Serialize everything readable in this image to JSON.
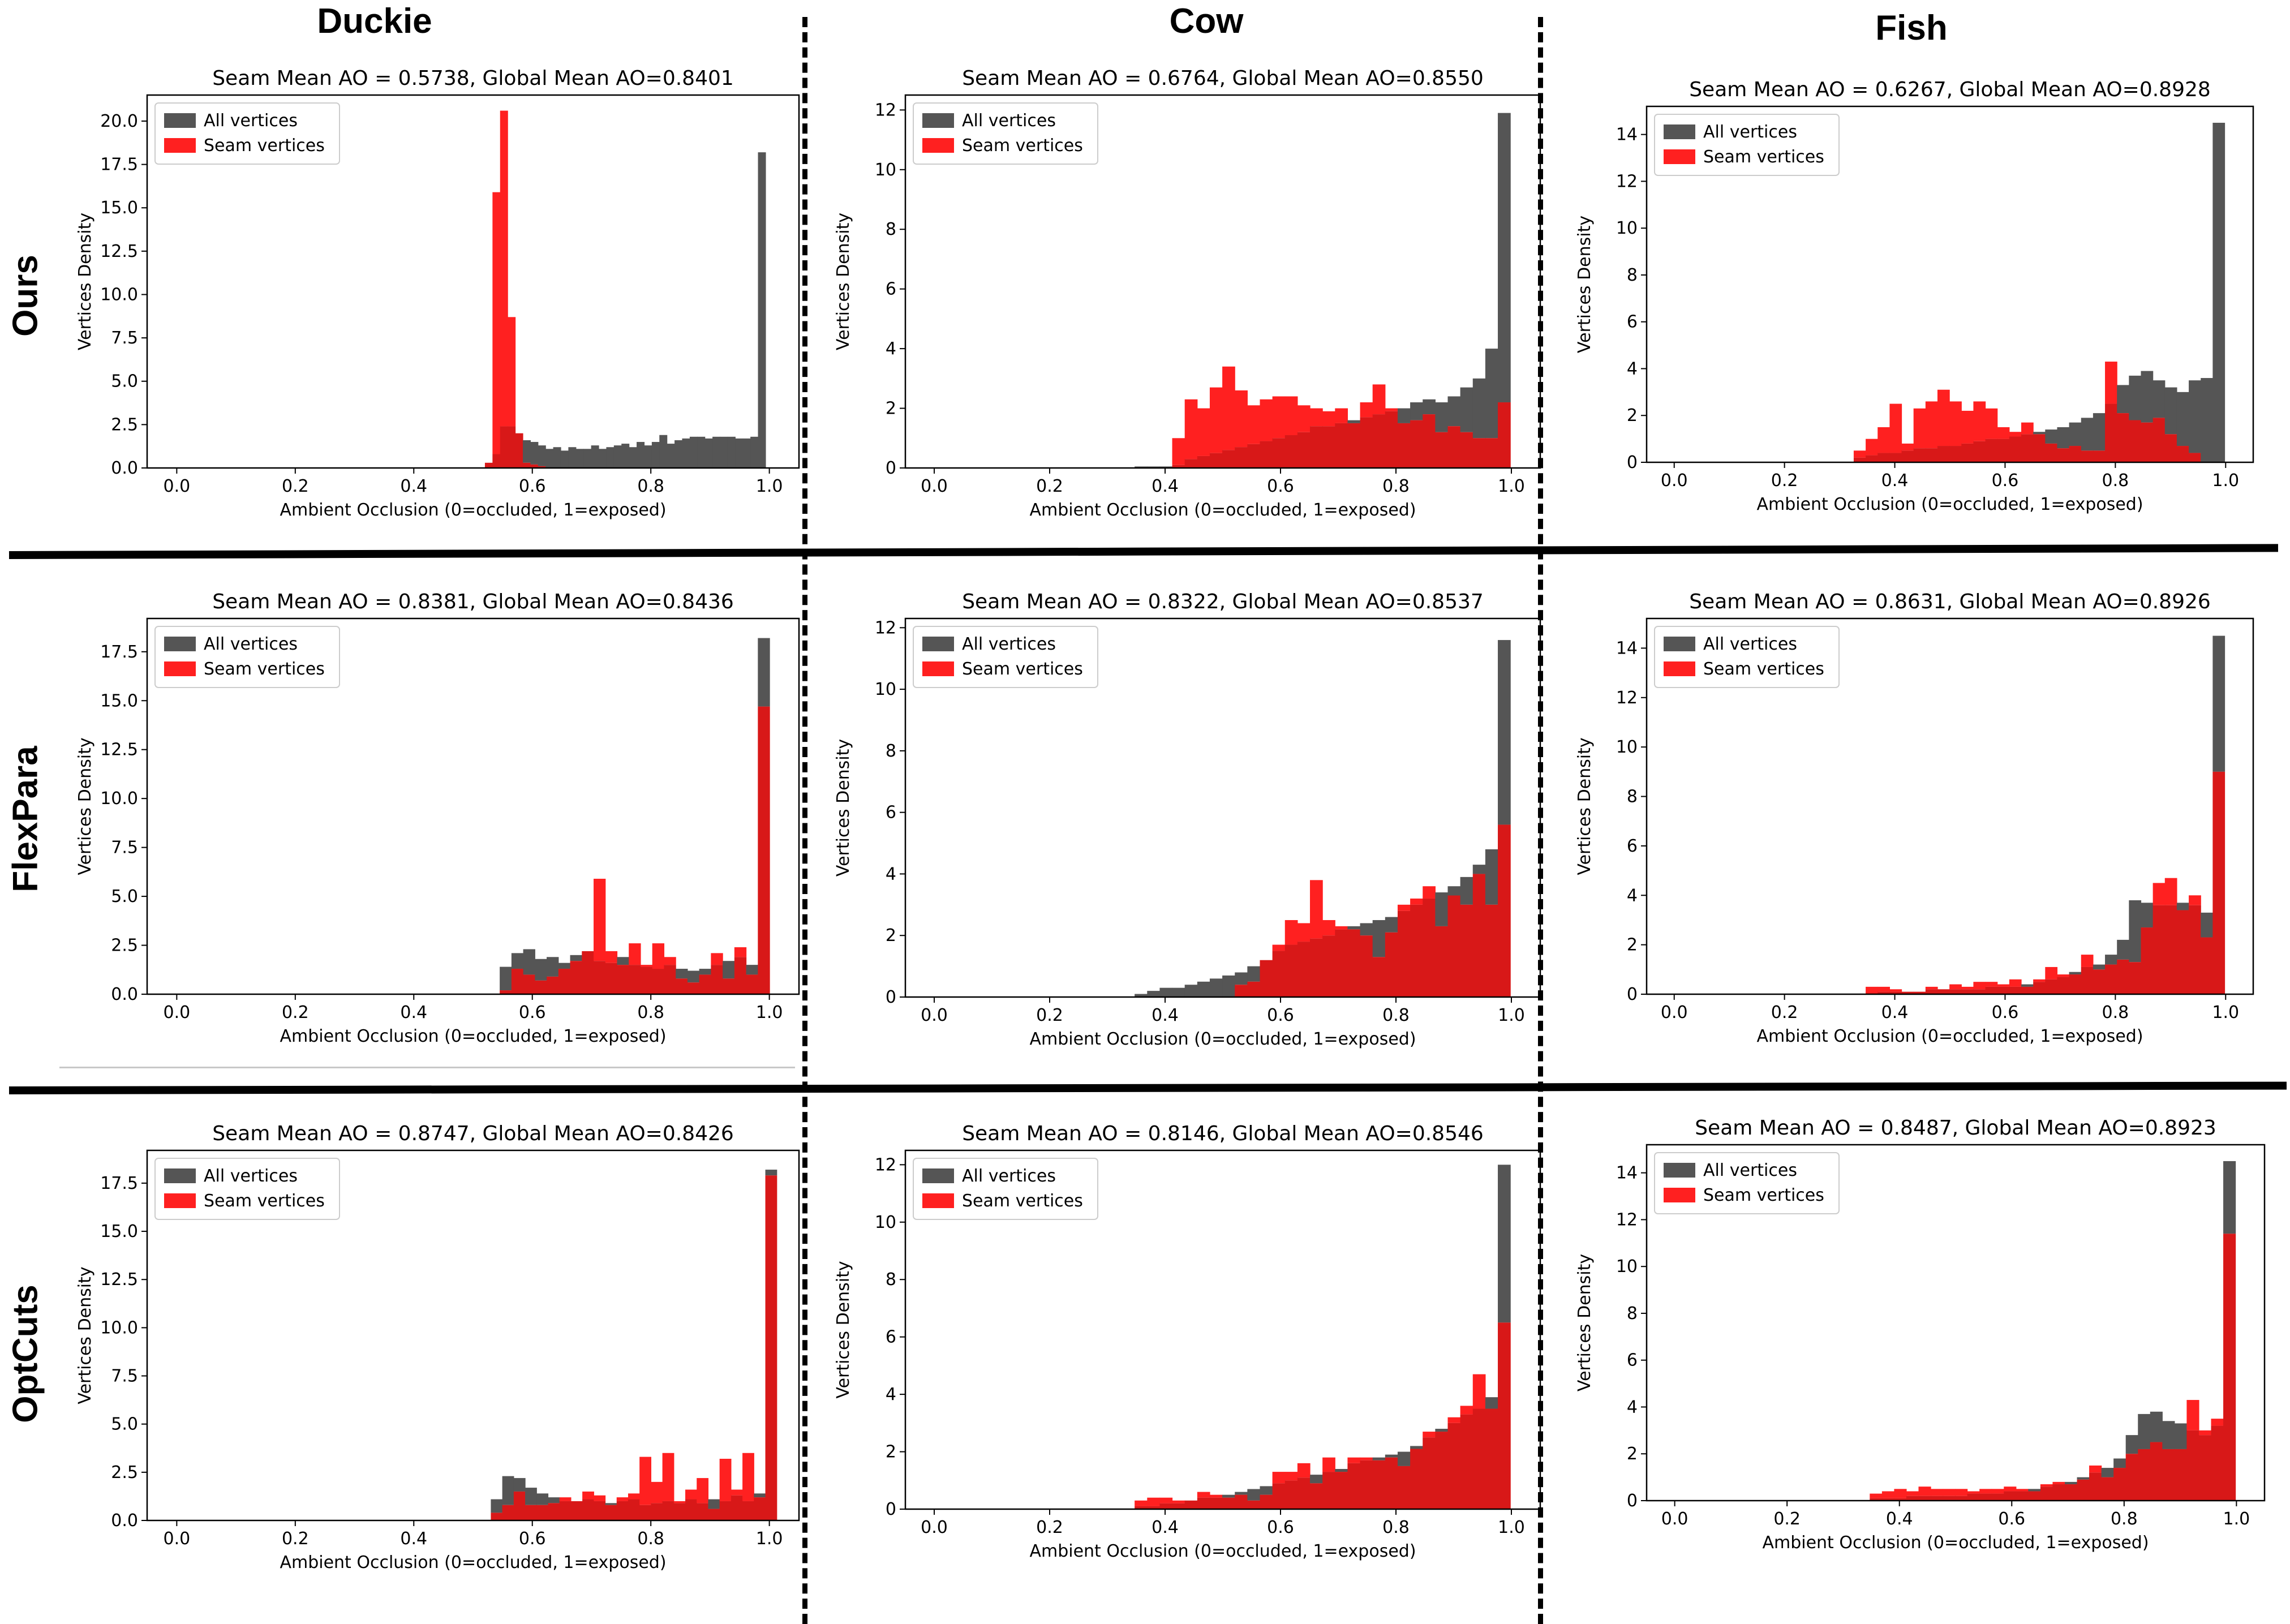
{
  "columns": [
    "Duckie",
    "Cow",
    "Fish"
  ],
  "rows": [
    "Ours",
    "FlexPara",
    "OptCuts"
  ],
  "legend": {
    "all": "All vertices",
    "seam": "Seam vertices"
  },
  "colors": {
    "all": "#555555",
    "seam": "#ff2020",
    "overlap": "#d81818"
  },
  "chart_data": [
    {
      "type": "bar",
      "row": "Ours",
      "column": "Duckie",
      "title": "Seam Mean AO = 0.5738, Global Mean AO=0.8401",
      "xlabel": "Ambient Occlusion (0=occluded, 1=exposed)",
      "ylabel": "Vertices Density",
      "xlim": [
        -0.05,
        1.05
      ],
      "ylim": [
        0,
        21.5
      ],
      "xticks": [
        "0.0",
        "0.2",
        "0.4",
        "0.6",
        "0.8",
        "1.0"
      ],
      "yticks": [
        0,
        2.5,
        5,
        7.5,
        10,
        12.5,
        15,
        17.5,
        20
      ],
      "ytick_decimals": 1,
      "bin_start": 0.52,
      "bin_width": 0.0128,
      "series": [
        {
          "name": "All vertices",
          "values": [
            0.3,
            0.8,
            2.4,
            2.4,
            2.0,
            1.6,
            1.5,
            1.3,
            1.1,
            1.2,
            1.0,
            1.2,
            1.1,
            1.1,
            1.3,
            1.1,
            1.2,
            1.3,
            1.4,
            1.2,
            1.5,
            1.3,
            1.5,
            1.9,
            1.4,
            1.6,
            1.7,
            1.8,
            1.8,
            1.7,
            1.8,
            1.8,
            1.8,
            1.7,
            1.7,
            1.8,
            18.2
          ]
        },
        {
          "name": "Seam vertices",
          "values": [
            0.3,
            15.9,
            20.6,
            8.7,
            2.0,
            0.3,
            0.2,
            0.1,
            0,
            0,
            0,
            0,
            0,
            0,
            0,
            0,
            0,
            0,
            0,
            0,
            0,
            0,
            0,
            0,
            0,
            0,
            0,
            0,
            0,
            0,
            0,
            0,
            0,
            0,
            0,
            0,
            0
          ]
        }
      ]
    },
    {
      "type": "bar",
      "row": "Ours",
      "column": "Cow",
      "title": "Seam Mean AO = 0.6764, Global Mean AO=0.8550",
      "xlabel": "Ambient Occlusion (0=occluded, 1=exposed)",
      "ylabel": "Vertices Density",
      "xlim": [
        -0.05,
        1.05
      ],
      "ylim": [
        0,
        12.5
      ],
      "xticks": [
        "0.0",
        "0.2",
        "0.4",
        "0.6",
        "0.8",
        "1.0"
      ],
      "yticks": [
        0,
        2,
        4,
        6,
        8,
        10,
        12
      ],
      "ytick_decimals": 0,
      "bin_start": 0.0,
      "bin_width": 0.0217,
      "series": [
        {
          "name": "All vertices",
          "values": [
            0,
            0,
            0,
            0,
            0,
            0,
            0,
            0,
            0,
            0,
            0,
            0,
            0,
            0,
            0,
            0,
            0.05,
            0.05,
            0.05,
            0.1,
            0.3,
            0.4,
            0.5,
            0.6,
            0.7,
            0.8,
            0.9,
            1.0,
            1.1,
            1.2,
            1.4,
            1.4,
            1.5,
            1.6,
            1.7,
            1.8,
            1.9,
            2.0,
            2.2,
            2.3,
            2.2,
            2.4,
            2.7,
            3.0,
            4.0,
            11.9
          ]
        },
        {
          "name": "Seam vertices",
          "values": [
            0,
            0,
            0,
            0,
            0,
            0,
            0,
            0,
            0,
            0,
            0,
            0,
            0,
            0,
            0,
            0,
            0,
            0,
            0,
            1.0,
            2.3,
            2.0,
            2.7,
            3.4,
            2.6,
            2.1,
            2.3,
            2.4,
            2.4,
            2.1,
            2.0,
            1.9,
            2.0,
            1.5,
            2.2,
            2.8,
            2.0,
            1.5,
            1.6,
            1.8,
            1.2,
            1.4,
            1.2,
            1.0,
            1.0,
            2.2
          ]
        }
      ]
    },
    {
      "type": "bar",
      "row": "Ours",
      "column": "Fish",
      "title": "Seam Mean AO = 0.6267, Global Mean AO=0.8928",
      "xlabel": "Ambient Occlusion (0=occluded, 1=exposed)",
      "ylabel": "Vertices Density",
      "xlim": [
        -0.05,
        1.05
      ],
      "ylim": [
        0,
        15.2
      ],
      "xticks": [
        "0.0",
        "0.2",
        "0.4",
        "0.6",
        "0.8",
        "1.0"
      ],
      "yticks": [
        0,
        2,
        4,
        6,
        8,
        10,
        12,
        14
      ],
      "ytick_decimals": 0,
      "bin_start": 0.0,
      "bin_width": 0.0217,
      "series": [
        {
          "name": "All vertices",
          "values": [
            0,
            0,
            0,
            0,
            0,
            0,
            0,
            0,
            0,
            0,
            0,
            0,
            0,
            0,
            0,
            0.2,
            0.3,
            0.4,
            0.4,
            0.5,
            0.6,
            0.6,
            0.7,
            0.7,
            0.8,
            0.9,
            1.0,
            1.0,
            1.1,
            1.2,
            1.3,
            1.4,
            1.5,
            1.7,
            1.9,
            2.1,
            2.5,
            3.3,
            3.7,
            3.9,
            3.5,
            3.2,
            3.0,
            3.5,
            3.6,
            14.5
          ]
        },
        {
          "name": "Seam vertices",
          "values": [
            0,
            0,
            0,
            0,
            0,
            0,
            0,
            0,
            0,
            0,
            0,
            0,
            0,
            0,
            0,
            0.5,
            1.0,
            1.5,
            2.5,
            0.8,
            2.3,
            2.6,
            3.1,
            2.6,
            2.2,
            2.6,
            2.3,
            1.5,
            1.3,
            1.7,
            1.2,
            0.8,
            0.6,
            0.7,
            0.5,
            0.5,
            4.3,
            2.1,
            1.8,
            1.7,
            1.9,
            1.2,
            0.7,
            0.4,
            0,
            0
          ]
        }
      ]
    },
    {
      "type": "bar",
      "row": "FlexPara",
      "column": "Duckie",
      "title": "Seam Mean AO = 0.8381, Global Mean AO=0.8436",
      "xlabel": "Ambient Occlusion (0=occluded, 1=exposed)",
      "ylabel": "Vertices Density",
      "xlim": [
        -0.05,
        1.05
      ],
      "ylim": [
        0,
        19.2
      ],
      "xticks": [
        "0.0",
        "0.2",
        "0.4",
        "0.6",
        "0.8",
        "1.0"
      ],
      "yticks": [
        0,
        2.5,
        5,
        7.5,
        10,
        12.5,
        15,
        17.5
      ],
      "ytick_decimals": 1,
      "bin_start": 0.545,
      "bin_width": 0.0198,
      "series": [
        {
          "name": "All vertices",
          "values": [
            1.4,
            2.1,
            2.3,
            1.8,
            1.9,
            1.6,
            2.0,
            2.2,
            1.7,
            1.6,
            1.9,
            1.5,
            1.4,
            1.3,
            1.5,
            1.3,
            1.2,
            1.3,
            1.5,
            1.7,
            1.9,
            1.5,
            18.2
          ]
        },
        {
          "name": "Seam vertices",
          "values": [
            0.2,
            1.3,
            1.0,
            0.7,
            0.9,
            1.3,
            1.7,
            2.2,
            5.9,
            2.2,
            1.5,
            2.6,
            1.5,
            2.6,
            1.9,
            0.8,
            0.6,
            1.0,
            2.1,
            0.8,
            2.4,
            1.0,
            14.7
          ]
        }
      ]
    },
    {
      "type": "bar",
      "row": "FlexPara",
      "column": "Cow",
      "title": "Seam Mean AO = 0.8322, Global Mean AO=0.8537",
      "xlabel": "Ambient Occlusion (0=occluded, 1=exposed)",
      "ylabel": "Vertices Density",
      "xlim": [
        -0.05,
        1.05
      ],
      "ylim": [
        0,
        12.3
      ],
      "xticks": [
        "0.0",
        "0.2",
        "0.4",
        "0.6",
        "0.8",
        "1.0"
      ],
      "yticks": [
        0,
        2,
        4,
        6,
        8,
        10,
        12
      ],
      "ytick_decimals": 0,
      "bin_start": 0.0,
      "bin_width": 0.0217,
      "series": [
        {
          "name": "All vertices",
          "values": [
            0,
            0,
            0,
            0,
            0,
            0,
            0,
            0,
            0,
            0,
            0,
            0,
            0,
            0,
            0,
            0,
            0.1,
            0.2,
            0.3,
            0.3,
            0.4,
            0.5,
            0.6,
            0.7,
            0.8,
            1.0,
            1.2,
            1.5,
            1.7,
            1.8,
            1.9,
            2.0,
            2.2,
            2.3,
            2.4,
            2.5,
            2.6,
            2.8,
            3.0,
            3.2,
            3.4,
            3.6,
            3.9,
            4.3,
            4.8,
            11.6
          ]
        },
        {
          "name": "Seam vertices",
          "values": [
            0,
            0,
            0,
            0,
            0,
            0,
            0,
            0,
            0,
            0,
            0,
            0,
            0,
            0,
            0,
            0,
            0,
            0,
            0,
            0,
            0,
            0,
            0,
            0,
            0.4,
            0.5,
            1.2,
            1.7,
            2.5,
            2.4,
            3.8,
            2.5,
            2.3,
            2.2,
            2.0,
            1.3,
            2.1,
            3.0,
            3.2,
            3.6,
            2.3,
            3.3,
            3.0,
            4.0,
            3.0,
            5.6
          ]
        }
      ]
    },
    {
      "type": "bar",
      "row": "FlexPara",
      "column": "Fish",
      "title": "Seam Mean AO = 0.8631, Global Mean AO=0.8926",
      "xlabel": "Ambient Occlusion (0=occluded, 1=exposed)",
      "ylabel": "Vertices Density",
      "xlim": [
        -0.05,
        1.05
      ],
      "ylim": [
        0,
        15.2
      ],
      "xticks": [
        "0.0",
        "0.2",
        "0.4",
        "0.6",
        "0.8",
        "1.0"
      ],
      "yticks": [
        0,
        2,
        4,
        6,
        8,
        10,
        12,
        14
      ],
      "ytick_decimals": 0,
      "bin_start": 0.0,
      "bin_width": 0.0217,
      "series": [
        {
          "name": "All vertices",
          "values": [
            0,
            0,
            0,
            0,
            0,
            0,
            0,
            0,
            0,
            0,
            0,
            0,
            0,
            0,
            0,
            0,
            0,
            0.1,
            0.1,
            0.1,
            0.1,
            0.2,
            0.2,
            0.2,
            0.2,
            0.2,
            0.3,
            0.3,
            0.3,
            0.4,
            0.5,
            0.6,
            0.7,
            0.9,
            1.1,
            1.2,
            1.6,
            2.2,
            3.8,
            3.7,
            3.6,
            3.6,
            3.7,
            3.6,
            3.3,
            14.5
          ]
        },
        {
          "name": "Seam vertices",
          "values": [
            0,
            0,
            0,
            0,
            0,
            0,
            0,
            0,
            0,
            0,
            0,
            0,
            0,
            0,
            0,
            0,
            0.3,
            0.3,
            0.2,
            0.1,
            0.1,
            0.3,
            0.2,
            0.4,
            0.3,
            0.5,
            0.5,
            0.4,
            0.6,
            0.3,
            0.6,
            1.1,
            0.8,
            0.8,
            1.6,
            1.0,
            1.2,
            1.4,
            1.3,
            2.7,
            4.5,
            4.7,
            3.4,
            4.0,
            2.3,
            9.0
          ]
        }
      ]
    },
    {
      "type": "bar",
      "row": "OptCuts",
      "column": "Duckie",
      "title": "Seam Mean AO = 0.8747, Global Mean AO=0.8426",
      "xlabel": "Ambient Occlusion (0=occluded, 1=exposed)",
      "ylabel": "Vertices Density",
      "xlim": [
        -0.05,
        1.05
      ],
      "ylim": [
        0,
        19.2
      ],
      "xticks": [
        "0.0",
        "0.2",
        "0.4",
        "0.6",
        "0.8",
        "1.0"
      ],
      "yticks": [
        0,
        2.5,
        5,
        7.5,
        10,
        12.5,
        15,
        17.5
      ],
      "ytick_decimals": 1,
      "bin_start": 0.53,
      "bin_width": 0.0193,
      "series": [
        {
          "name": "All vertices",
          "values": [
            1.1,
            2.3,
            2.2,
            1.7,
            1.4,
            1.2,
            1.0,
            1.0,
            1.1,
            1.0,
            0.9,
            1.0,
            1.1,
            0.8,
            0.9,
            1.0,
            0.9,
            1.1,
            0.9,
            1.1,
            1.0,
            1.3,
            1.0,
            1.4,
            18.2
          ]
        },
        {
          "name": "Seam vertices",
          "values": [
            0.4,
            0.8,
            1.5,
            0.8,
            0.8,
            0.9,
            1.2,
            1.0,
            1.5,
            1.3,
            0.8,
            1.2,
            1.4,
            3.3,
            2.0,
            3.5,
            1.0,
            1.6,
            2.2,
            0.6,
            3.2,
            1.6,
            3.5,
            1.2,
            17.9
          ]
        }
      ]
    },
    {
      "type": "bar",
      "row": "OptCuts",
      "column": "Cow",
      "title": "Seam Mean AO = 0.8146, Global Mean AO=0.8546",
      "xlabel": "Ambient Occlusion (0=occluded, 1=exposed)",
      "ylabel": "Vertices Density",
      "xlim": [
        -0.05,
        1.05
      ],
      "ylim": [
        0,
        12.5
      ],
      "xticks": [
        "0.0",
        "0.2",
        "0.4",
        "0.6",
        "0.8",
        "1.0"
      ],
      "yticks": [
        0,
        2,
        4,
        6,
        8,
        10,
        12
      ],
      "ytick_decimals": 0,
      "bin_start": 0.0,
      "bin_width": 0.0217,
      "series": [
        {
          "name": "All vertices",
          "values": [
            0,
            0,
            0,
            0,
            0,
            0,
            0,
            0,
            0,
            0,
            0,
            0,
            0,
            0,
            0,
            0,
            0.1,
            0.1,
            0.2,
            0.2,
            0.3,
            0.4,
            0.4,
            0.5,
            0.6,
            0.7,
            0.8,
            0.9,
            1.0,
            1.1,
            1.2,
            1.3,
            1.4,
            1.6,
            1.7,
            1.8,
            1.9,
            2.0,
            2.2,
            2.5,
            2.8,
            3.0,
            3.3,
            3.5,
            3.9,
            12.0
          ]
        },
        {
          "name": "Seam vertices",
          "values": [
            0,
            0,
            0,
            0,
            0,
            0,
            0,
            0,
            0,
            0,
            0,
            0,
            0,
            0,
            0,
            0,
            0.3,
            0.4,
            0.4,
            0.3,
            0.3,
            0.6,
            0.5,
            0.4,
            0.5,
            0.3,
            0.5,
            1.3,
            1.3,
            1.6,
            0.9,
            1.8,
            1.3,
            1.8,
            1.8,
            1.7,
            1.8,
            1.5,
            2.1,
            2.7,
            2.7,
            3.2,
            3.6,
            4.7,
            3.5,
            6.5
          ]
        }
      ]
    },
    {
      "type": "bar",
      "row": "OptCuts",
      "column": "Fish",
      "title": "Seam Mean AO = 0.8487, Global Mean AO=0.8923",
      "xlabel": "Ambient Occlusion (0=occluded, 1=exposed)",
      "ylabel": "Vertices Density",
      "xlim": [
        -0.05,
        1.05
      ],
      "ylim": [
        0,
        15.2
      ],
      "xticks": [
        "0.0",
        "0.2",
        "0.4",
        "0.6",
        "0.8",
        "1.0"
      ],
      "yticks": [
        0,
        2,
        4,
        6,
        8,
        10,
        12,
        14
      ],
      "ytick_decimals": 0,
      "bin_start": 0.0,
      "bin_width": 0.0217,
      "series": [
        {
          "name": "All vertices",
          "values": [
            0,
            0,
            0,
            0,
            0,
            0,
            0,
            0,
            0,
            0,
            0,
            0,
            0,
            0,
            0,
            0,
            0.1,
            0.1,
            0.1,
            0.2,
            0.2,
            0.2,
            0.2,
            0.2,
            0.3,
            0.3,
            0.3,
            0.4,
            0.4,
            0.5,
            0.6,
            0.7,
            0.8,
            1.0,
            1.2,
            1.4,
            1.8,
            2.8,
            3.7,
            3.8,
            3.4,
            3.3,
            3.0,
            2.8,
            3.2,
            14.5
          ]
        },
        {
          "name": "Seam vertices",
          "values": [
            0,
            0,
            0,
            0,
            0,
            0,
            0,
            0,
            0,
            0,
            0,
            0,
            0,
            0,
            0,
            0,
            0.3,
            0.4,
            0.5,
            0.4,
            0.6,
            0.5,
            0.5,
            0.5,
            0.4,
            0.5,
            0.5,
            0.6,
            0.5,
            0.4,
            0.7,
            0.8,
            0.7,
            0.9,
            1.5,
            1.0,
            1.4,
            2.0,
            2.2,
            2.5,
            2.2,
            2.2,
            4.3,
            3.0,
            3.5,
            11.4
          ]
        }
      ]
    }
  ]
}
